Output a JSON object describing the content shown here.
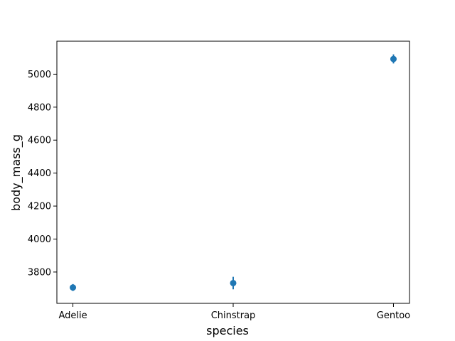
{
  "chart_data": {
    "type": "scatter",
    "title": "",
    "xlabel": "species",
    "ylabel": "body_mass_g",
    "categories": [
      "Adelie",
      "Chinstrap",
      "Gentoo"
    ],
    "series": [
      {
        "values": [
          3706,
          3733,
          5092
        ],
        "error_low": [
          3685,
          3695,
          5065
        ],
        "error_high": [
          3727,
          3771,
          5120
        ],
        "color": "#1f77b4"
      }
    ],
    "ylim": [
      3610,
      5200
    ],
    "yticks": [
      3800,
      4000,
      4200,
      4400,
      4600,
      4800,
      5000
    ],
    "grid": false,
    "legend": "none"
  }
}
